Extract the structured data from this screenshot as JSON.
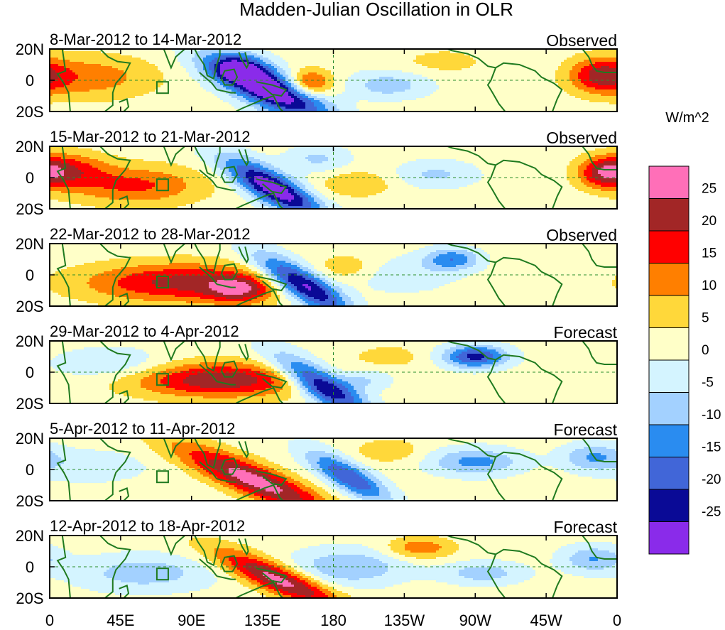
{
  "chart_data": {
    "type": "heatmap",
    "title": "Madden-Julian Oscillation in OLR",
    "colorbar_title": "W/m^2",
    "colorbar_ticks": [
      "25",
      "20",
      "15",
      "10",
      "5",
      "0",
      "-5",
      "-10",
      "-15",
      "-20",
      "-25"
    ],
    "colorbar_colors": [
      "#ff6fb8",
      "#a22626",
      "#ff0000",
      "#ff7f00",
      "#ffd83a",
      "#ffffc8",
      "#d4f4ff",
      "#a3d1ff",
      "#2a8cf0",
      "#4166d8",
      "#0a0a96",
      "#8a2bea"
    ],
    "x_ticks": [
      "0",
      "45E",
      "90E",
      "135E",
      "180",
      "135W",
      "90W",
      "45W",
      "0"
    ],
    "x_values": [
      0,
      45,
      90,
      135,
      180,
      225,
      270,
      315,
      360
    ],
    "y_ticks": [
      "20N",
      "0",
      "20S"
    ],
    "y_values": [
      20,
      0,
      -20
    ],
    "xlim": [
      0,
      360
    ],
    "ylim": [
      -20,
      20
    ],
    "legend": "right",
    "panels": [
      {
        "period": "8-Mar-2012 to 14-Mar-2012",
        "type": "Observed",
        "anomalies": [
          {
            "lon": 138,
            "lat": -5,
            "sx": 26,
            "sy": 9,
            "tilt": -0.4,
            "amp": -36
          },
          {
            "lon": 120,
            "lat": 8,
            "sx": 12,
            "sy": 6,
            "tilt": 0,
            "amp": -16
          },
          {
            "lon": 165,
            "lat": -2,
            "sx": 10,
            "sy": 6,
            "tilt": 0,
            "amp": 18
          },
          {
            "lon": 25,
            "lat": 2,
            "sx": 30,
            "sy": 10,
            "tilt": 0,
            "amp": 11
          },
          {
            "lon": 215,
            "lat": -3,
            "sx": 18,
            "sy": 6,
            "tilt": 0,
            "amp": -10
          },
          {
            "lon": 350,
            "lat": 3,
            "sx": 14,
            "sy": 8,
            "tilt": 0,
            "amp": 17
          },
          {
            "lon": 250,
            "lat": 12,
            "sx": 20,
            "sy": 6,
            "tilt": 0,
            "amp": 5
          }
        ]
      },
      {
        "period": "15-Mar-2012 to 21-Mar-2012",
        "type": "Observed",
        "anomalies": [
          {
            "lon": 142,
            "lat": -7,
            "sx": 22,
            "sy": 8,
            "tilt": -0.5,
            "amp": -32
          },
          {
            "lon": 55,
            "lat": -5,
            "sx": 30,
            "sy": 9,
            "tilt": 0,
            "amp": 14
          },
          {
            "lon": 10,
            "lat": 5,
            "sx": 18,
            "sy": 8,
            "tilt": 0,
            "amp": 15
          },
          {
            "lon": 195,
            "lat": -4,
            "sx": 16,
            "sy": 6,
            "tilt": 0,
            "amp": 8
          },
          {
            "lon": 245,
            "lat": 2,
            "sx": 18,
            "sy": 6,
            "tilt": 0,
            "amp": -8
          },
          {
            "lon": 352,
            "lat": 3,
            "sx": 12,
            "sy": 7,
            "tilt": 0,
            "amp": 16
          },
          {
            "lon": 170,
            "lat": 12,
            "sx": 14,
            "sy": 6,
            "tilt": 0,
            "amp": -8
          }
        ]
      },
      {
        "period": "22-Mar-2012 to 28-Mar-2012",
        "type": "Observed",
        "anomalies": [
          {
            "lon": 160,
            "lat": -6,
            "sx": 20,
            "sy": 8,
            "tilt": -0.5,
            "amp": -32
          },
          {
            "lon": 85,
            "lat": -5,
            "sx": 45,
            "sy": 9,
            "tilt": 0,
            "amp": 20
          },
          {
            "lon": 120,
            "lat": -10,
            "sx": 14,
            "sy": 6,
            "tilt": 0,
            "amp": 14
          },
          {
            "lon": 255,
            "lat": 10,
            "sx": 12,
            "sy": 5,
            "tilt": 0,
            "amp": -16
          },
          {
            "lon": 220,
            "lat": 0,
            "sx": 25,
            "sy": 8,
            "tilt": 0,
            "amp": -6
          },
          {
            "lon": 190,
            "lat": 5,
            "sx": 14,
            "sy": 6,
            "tilt": 0,
            "amp": 7
          }
        ]
      },
      {
        "period": "29-Mar-2012 to 4-Apr-2012",
        "type": "Forecast",
        "anomalies": [
          {
            "lon": 172,
            "lat": -8,
            "sx": 20,
            "sy": 8,
            "tilt": -0.5,
            "amp": -30
          },
          {
            "lon": 108,
            "lat": -5,
            "sx": 40,
            "sy": 8,
            "tilt": 0,
            "amp": 22
          },
          {
            "lon": 270,
            "lat": 10,
            "sx": 14,
            "sy": 5,
            "tilt": 0,
            "amp": -24
          },
          {
            "lon": 215,
            "lat": 10,
            "sx": 15,
            "sy": 5,
            "tilt": 0,
            "amp": 6
          },
          {
            "lon": 40,
            "lat": 5,
            "sx": 25,
            "sy": 7,
            "tilt": 0,
            "amp": -8
          },
          {
            "lon": 200,
            "lat": -5,
            "sx": 12,
            "sy": 5,
            "tilt": 0,
            "amp": -8
          }
        ]
      },
      {
        "period": "5-Apr-2012 to 11-Apr-2012",
        "type": "Forecast",
        "anomalies": [
          {
            "lon": 190,
            "lat": -5,
            "sx": 18,
            "sy": 7,
            "tilt": -0.5,
            "amp": -22
          },
          {
            "lon": 130,
            "lat": -7,
            "sx": 35,
            "sy": 8,
            "tilt": -0.4,
            "amp": 26
          },
          {
            "lon": 270,
            "lat": 5,
            "sx": 20,
            "sy": 6,
            "tilt": 0,
            "amp": -14
          },
          {
            "lon": 215,
            "lat": 12,
            "sx": 14,
            "sy": 5,
            "tilt": 0,
            "amp": 8
          },
          {
            "lon": 25,
            "lat": 2,
            "sx": 25,
            "sy": 7,
            "tilt": 0,
            "amp": -6
          },
          {
            "lon": 345,
            "lat": 8,
            "sx": 14,
            "sy": 6,
            "tilt": 0,
            "amp": -12
          }
        ]
      },
      {
        "period": "12-Apr-2012 to 18-Apr-2012",
        "type": "Forecast",
        "anomalies": [
          {
            "lon": 145,
            "lat": -8,
            "sx": 28,
            "sy": 7,
            "tilt": -0.4,
            "amp": 26
          },
          {
            "lon": 60,
            "lat": -4,
            "sx": 30,
            "sy": 8,
            "tilt": 0,
            "amp": -10
          },
          {
            "lon": 190,
            "lat": 0,
            "sx": 25,
            "sy": 8,
            "tilt": 0,
            "amp": -12
          },
          {
            "lon": 235,
            "lat": 12,
            "sx": 15,
            "sy": 5,
            "tilt": 0,
            "amp": 12
          },
          {
            "lon": 275,
            "lat": -4,
            "sx": 18,
            "sy": 5,
            "tilt": 0,
            "amp": -10
          },
          {
            "lon": 345,
            "lat": 5,
            "sx": 14,
            "sy": 6,
            "tilt": 0,
            "amp": -12
          }
        ]
      }
    ]
  }
}
